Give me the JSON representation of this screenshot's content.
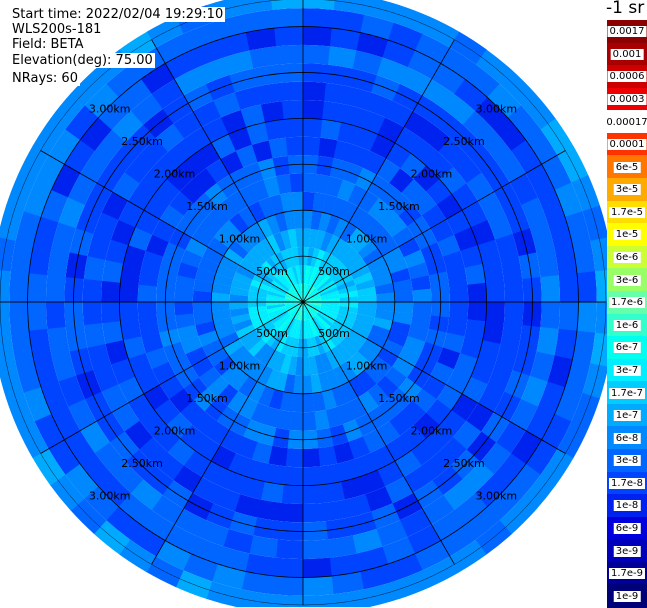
{
  "header": {
    "start_time": "Start time: 2022/02/04 19:29:10",
    "instrument": "WLS200s-181",
    "field": "Field: BETA",
    "elevation": "Elevation(deg): 75.00",
    "nrays": "NRays: 60"
  },
  "colorbar": {
    "title": "-1 sr",
    "labels": [
      "0.0017",
      "0.001",
      "0.0006",
      "0.0003",
      "0.00017",
      "0.0001",
      "6e-5",
      "3e-5",
      "1.7e-5",
      "1e-5",
      "6e-6",
      "3e-6",
      "1.7e-6",
      "1e-6",
      "6e-7",
      "3e-7",
      "1.7e-7",
      "1e-7",
      "6e-8",
      "3e-8",
      "1.7e-8",
      "1e-8",
      "6e-9",
      "3e-9",
      "1.7e-9",
      "1e-9"
    ],
    "colors": [
      "#8b0000",
      "#a80000",
      "#cc0000",
      "#ee0000",
      "#ffffff",
      "#ff3300",
      "#ff7700",
      "#ffaa00",
      "#ffdd00",
      "#ffff00",
      "#ccff33",
      "#99ff66",
      "#66ffaa",
      "#33ffcc",
      "#00ffee",
      "#00eeff",
      "#00ccff",
      "#00aaff",
      "#0088ff",
      "#0066ff",
      "#0044ff",
      "#0022ee",
      "#0000dd",
      "#0000bb",
      "#000099",
      "#000077"
    ]
  },
  "chart_data": {
    "type": "heatmap",
    "projection": "polar (PPI scan)",
    "field": "BETA",
    "nrays": 60,
    "range_ring_labels": [
      "500m",
      "1.00km",
      "1.50km",
      "2.00km",
      "2.50km",
      "3.00km"
    ],
    "range_rings_m": [
      500,
      1000,
      1500,
      2000,
      2500,
      3000
    ],
    "spokes_deg": [
      0,
      30,
      60,
      90,
      120,
      150,
      180,
      210,
      240,
      270,
      300,
      330
    ],
    "grid": true,
    "radial_profile": {
      "range_m": [
        100,
        300,
        500,
        700,
        900,
        1100,
        1300,
        1500,
        1700,
        1900,
        2100,
        2300,
        2500,
        2700,
        2900,
        3100,
        3300
      ],
      "beta_color_index": [
        14,
        15,
        16,
        17,
        18,
        19,
        19,
        19,
        20,
        20,
        20,
        20,
        20,
        19,
        20,
        19,
        18
      ]
    }
  }
}
